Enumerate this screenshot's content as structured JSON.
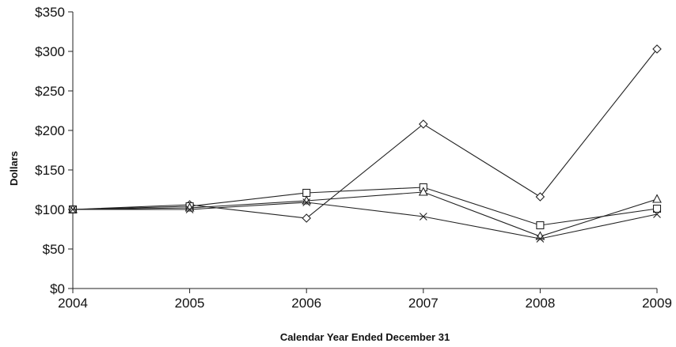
{
  "chart_data": {
    "type": "line",
    "title": "",
    "xlabel": "Calendar Year Ended December 31",
    "ylabel": "Dollars",
    "x": [
      "2004",
      "2005",
      "2006",
      "2007",
      "2008",
      "2009"
    ],
    "ylim": [
      0,
      350
    ],
    "y_ticks": [
      0,
      50,
      100,
      150,
      200,
      250,
      300,
      350
    ],
    "y_tick_labels": [
      "$0",
      "$50",
      "$100",
      "$150",
      "$200",
      "$250",
      "$300",
      "$350"
    ],
    "grid": false,
    "legend": "none",
    "series": [
      {
        "marker": "diamond",
        "values": [
          100,
          106,
          89,
          208,
          116,
          303
        ]
      },
      {
        "marker": "square",
        "values": [
          100,
          104,
          121,
          128,
          80,
          101
        ]
      },
      {
        "marker": "triangle",
        "values": [
          100,
          102,
          111,
          122,
          66,
          113
        ]
      },
      {
        "marker": "x",
        "values": [
          100,
          100,
          109,
          91,
          63,
          94
        ]
      }
    ]
  }
}
